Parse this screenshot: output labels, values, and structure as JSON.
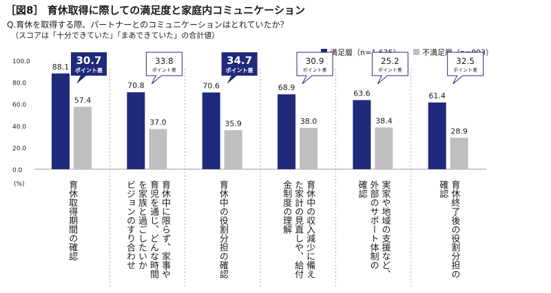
{
  "title": "［図8］ 育休取得に際しての満足度と家庭内コミュニケーション",
  "question": "Q.育休を取得する際、パートナーとのコミュニケーションはとれていたか？",
  "note": "（スコアは「十分できていた」「まあできていた」の合計値）",
  "y_unit": "(%)",
  "colors": {
    "satisfied": "#1f2a7a",
    "unsatisfied": "#bfbfbf",
    "callout_fill": "#1f2a7a",
    "callout_outline": "#1f2a7a"
  },
  "chart_data": {
    "type": "bar",
    "ylim": [
      0,
      100
    ],
    "yticks": [
      "0.0",
      "20.0",
      "40.0",
      "60.0",
      "80.0",
      "100.0"
    ],
    "legend_position": "top-right",
    "categories": [
      "育休取得期間の確認",
      "育休中に限らず、家事や育児を通じ、どんな時間を家族と過ごしたいかビジョンのすり合わせ",
      "育休中の役割分担の確認",
      "育休中の収入減少に備えた家計の見直しや、給付金制度の理解",
      "実家や地域の支援など、外部のサポート体制の確認",
      "育休終了後の役割分担の確認"
    ],
    "category_lines": [
      [
        "育休取得期間の確認"
      ],
      [
        "育休中に限らず、家事や",
        "育児を通じ、どんな時間",
        "を家族と過ごしたいか",
        "ビジョンのすり合わせ"
      ],
      [
        "育休中の役割分担の確認"
      ],
      [
        "育休中の収入減少に備え",
        "た家計の見直しや、給付",
        "金制度の理解"
      ],
      [
        "実家や地域の支援など、",
        "外部のサポート体制の",
        "確認"
      ],
      [
        "育休終了後の役割分担の",
        "確認"
      ]
    ],
    "series": [
      {
        "name": "満足層（n=1,635）",
        "values": [
          88.1,
          70.8,
          70.6,
          68.9,
          63.6,
          61.4
        ],
        "labels": [
          "88.1",
          "70.8",
          "70.6",
          "68.9",
          "63.6",
          "61.4"
        ]
      },
      {
        "name": "不満足層（n=803）",
        "values": [
          57.4,
          37.0,
          35.9,
          38.0,
          38.4,
          28.9
        ],
        "labels": [
          "57.4",
          "37.0",
          "35.9",
          "38.0",
          "38.4",
          "28.9"
        ]
      }
    ],
    "differences": [
      {
        "value": "30.7",
        "label": "ポイント差",
        "highlight": true
      },
      {
        "value": "33.8",
        "label": "ポイント差",
        "highlight": false
      },
      {
        "value": "34.7",
        "label": "ポイント差",
        "highlight": true
      },
      {
        "value": "30.9",
        "label": "ポイント差",
        "highlight": false
      },
      {
        "value": "25.2",
        "label": "ポイント差",
        "highlight": false
      },
      {
        "value": "32.5",
        "label": "ポイント差",
        "highlight": false
      }
    ]
  }
}
